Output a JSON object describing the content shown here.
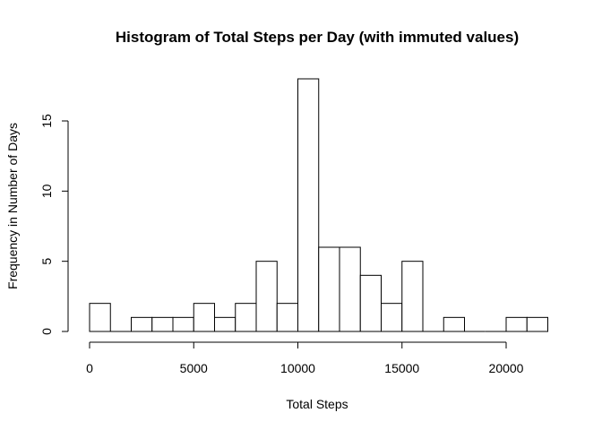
{
  "chart_data": {
    "type": "bar",
    "title": "Histogram of Total Steps per Day (with immuted values)",
    "xlabel": "Total Steps",
    "ylabel": "Frequency in Number of Days",
    "xlim": [
      0,
      22000
    ],
    "ylim": [
      0,
      18
    ],
    "x_ticks": [
      0,
      5000,
      10000,
      15000,
      20000
    ],
    "y_ticks": [
      0,
      5,
      10,
      15
    ],
    "bin_width": 1000,
    "bin_starts": [
      0,
      1000,
      2000,
      3000,
      4000,
      5000,
      6000,
      7000,
      8000,
      9000,
      10000,
      11000,
      12000,
      13000,
      14000,
      15000,
      16000,
      17000,
      18000,
      19000,
      20000,
      21000
    ],
    "values": [
      2,
      0,
      1,
      1,
      1,
      2,
      1,
      2,
      5,
      2,
      18,
      6,
      6,
      4,
      2,
      5,
      0,
      1,
      0,
      0,
      1,
      1
    ],
    "grid": false,
    "legend": "none",
    "bar_fill": "#ffffff",
    "bar_stroke": "#000000"
  }
}
